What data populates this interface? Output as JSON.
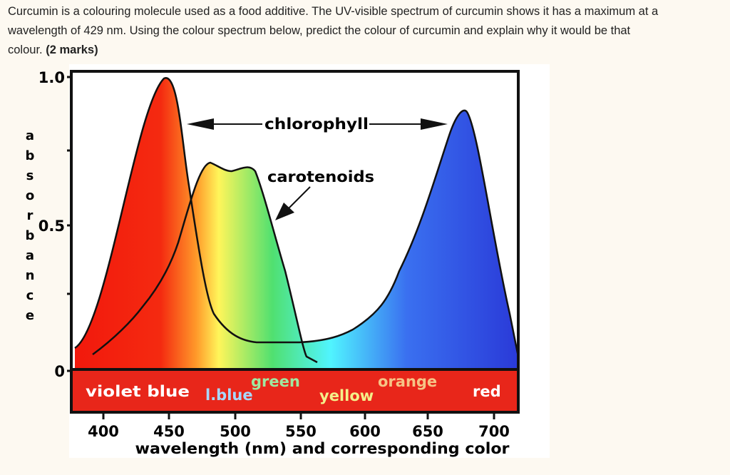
{
  "question": {
    "lines": [
      "Curcumin is a colouring molecule used as a food additive. The UV-visible spectrum of curcumin shows it has a maximum at a",
      "wavelength of 429 nm. Using the colour spectrum below, predict the colour of curcumin and explain why it would be that",
      "colour."
    ],
    "marks": "(2 marks)"
  },
  "figure": {
    "y_axis_label": "absorbance",
    "y_ticks": [
      "1.0",
      "0.5",
      "0"
    ],
    "x_ticks": [
      "400",
      "450",
      "500",
      "550",
      "600",
      "650",
      "700"
    ],
    "x_axis_label": "wavelength (nm) and corresponding color",
    "curve_labels": {
      "chlorophyll": "chlorophyll",
      "carotenoids": "carotenoids"
    },
    "color_bands": [
      "violet blue",
      "l.blue",
      "green",
      "yellow",
      "orange",
      "red"
    ]
  }
}
